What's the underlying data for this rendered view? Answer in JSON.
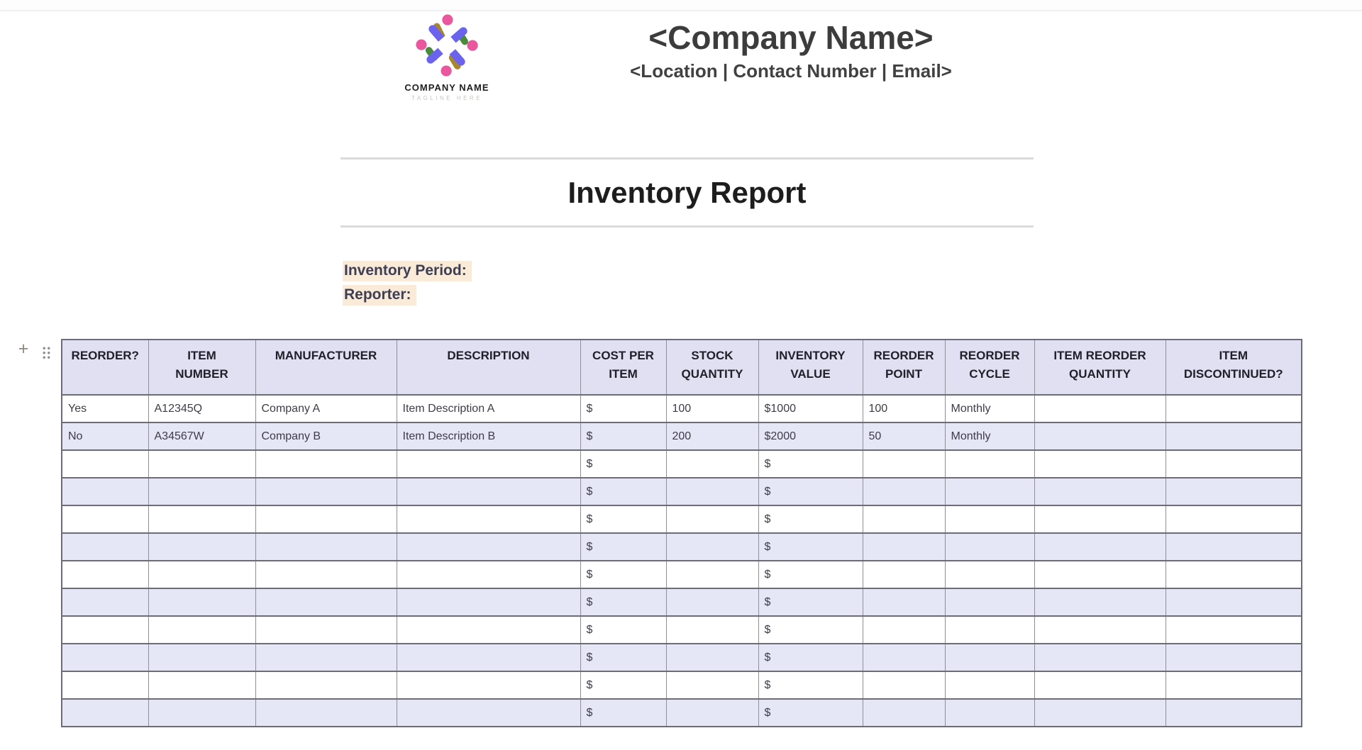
{
  "header": {
    "logo": {
      "name": "COMPANY NAME",
      "tagline": "TAGLINE HERE"
    },
    "company_name": "<Company Name>",
    "contact_line": "<Location | Contact Number | Email>"
  },
  "report": {
    "title": "Inventory Report",
    "inventory_period_label": "Inventory Period:",
    "reporter_label": "Reporter:"
  },
  "table_controls": {
    "add_button": "+"
  },
  "table": {
    "columns": [
      "REORDER?",
      "ITEM\nNUMBER",
      "MANUFACTURER",
      "DESCRIPTION",
      "COST PER\nITEM",
      "STOCK\nQUANTITY",
      "INVENTORY\nVALUE",
      "REORDER\nPOINT",
      "REORDER\nCYCLE",
      "ITEM REORDER\nQUANTITY",
      "ITEM\nDISCONTINUED?"
    ],
    "rows": [
      [
        "Yes",
        "A12345Q",
        "Company A",
        "Item Description A",
        "$",
        "100",
        "$1000",
        "100",
        "Monthly",
        "",
        ""
      ],
      [
        "No",
        "A34567W",
        "Company B",
        "Item Description B",
        "$",
        "200",
        "$2000",
        "50",
        "Monthly",
        "",
        ""
      ],
      [
        "",
        "",
        "",
        "",
        "$",
        "",
        "$",
        "",
        "",
        "",
        ""
      ],
      [
        "",
        "",
        "",
        "",
        "$",
        "",
        "$",
        "",
        "",
        "",
        ""
      ],
      [
        "",
        "",
        "",
        "",
        "$",
        "",
        "$",
        "",
        "",
        "",
        ""
      ],
      [
        "",
        "",
        "",
        "",
        "$",
        "",
        "$",
        "",
        "",
        "",
        ""
      ],
      [
        "",
        "",
        "",
        "",
        "$",
        "",
        "$",
        "",
        "",
        "",
        ""
      ],
      [
        "",
        "",
        "",
        "",
        "$",
        "",
        "$",
        "",
        "",
        "",
        ""
      ],
      [
        "",
        "",
        "",
        "",
        "$",
        "",
        "$",
        "",
        "",
        "",
        ""
      ],
      [
        "",
        "",
        "",
        "",
        "$",
        "",
        "$",
        "",
        "",
        "",
        ""
      ],
      [
        "",
        "",
        "",
        "",
        "$",
        "",
        "$",
        "",
        "",
        "",
        ""
      ],
      [
        "",
        "",
        "",
        "",
        "$",
        "",
        "$",
        "",
        "",
        "",
        ""
      ]
    ]
  },
  "colors": {
    "table_header_bg": "#e0e0f2",
    "table_alt_row_bg": "#e5e6f6",
    "table_border": "#6c6c78",
    "label_highlight": "#faebd9",
    "logo_purple": "#6b63ee",
    "logo_pink": "#e9589e",
    "logo_green": "#4a8a3f",
    "logo_olive": "#a8872b"
  }
}
